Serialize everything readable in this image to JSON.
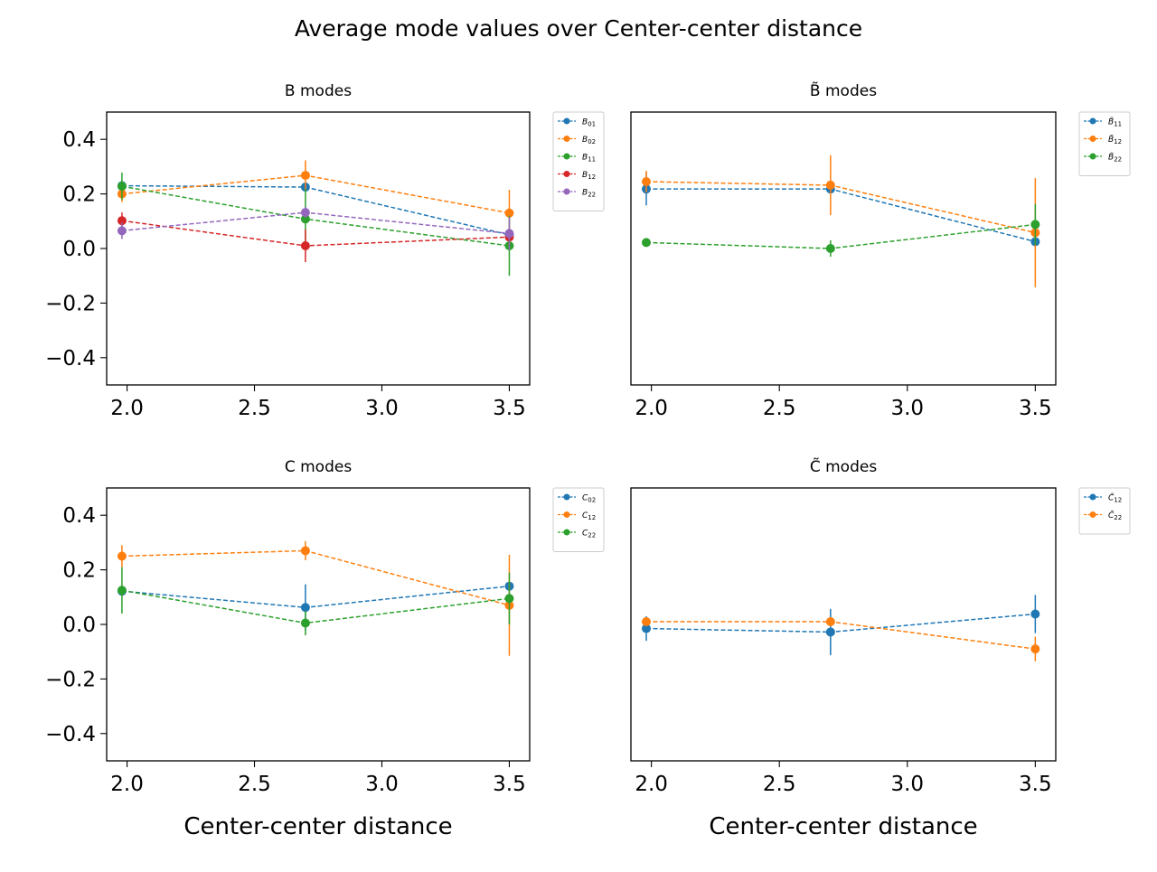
{
  "figure": {
    "suptitle": "Average mode values over Center-center distance"
  },
  "chart_data": [
    {
      "type": "line",
      "title": "B modes",
      "xlabel": "",
      "ylabel": "",
      "xlim": [
        1.92,
        3.58
      ],
      "ylim": [
        -0.5,
        0.5
      ],
      "xticks": [
        "2.0",
        "2.5",
        "3.0",
        "3.5"
      ],
      "yticks": [
        "0.4",
        "0.2",
        "0.0",
        "−0.2",
        "−0.4"
      ],
      "legend_position": "outside-right",
      "show_yticklabels": true,
      "show_xlabel": false,
      "series": [
        {
          "name": "B01",
          "color": "#1f77b4",
          "x": [
            1.98,
            2.7,
            3.5
          ],
          "y": [
            0.23,
            0.225,
            0.05
          ],
          "err": [
            0.01,
            0.01,
            0.02
          ]
        },
        {
          "name": "B02",
          "color": "#ff7f0e",
          "x": [
            1.98,
            2.7,
            3.5
          ],
          "y": [
            0.2,
            0.268,
            0.13
          ],
          "err": [
            0.03,
            0.055,
            0.085
          ]
        },
        {
          "name": "B11",
          "color": "#2ca02c",
          "x": [
            1.98,
            2.7,
            3.5
          ],
          "y": [
            0.228,
            0.108,
            0.01
          ],
          "err": [
            0.05,
            0.11,
            0.11
          ]
        },
        {
          "name": "B12",
          "color": "#d62728",
          "x": [
            1.98,
            2.7,
            3.5
          ],
          "y": [
            0.102,
            0.01,
            0.042
          ],
          "err": [
            0.03,
            0.06,
            0.03
          ]
        },
        {
          "name": "B22",
          "color": "#9467bd",
          "x": [
            1.98,
            2.7,
            3.5
          ],
          "y": [
            0.065,
            0.132,
            0.055
          ],
          "err": [
            0.03,
            0.02,
            0.06
          ]
        }
      ]
    },
    {
      "type": "line",
      "title": "B̃ modes",
      "xlabel": "",
      "ylabel": "",
      "xlim": [
        1.92,
        3.58
      ],
      "ylim": [
        -0.5,
        0.5
      ],
      "xticks": [
        "2.0",
        "2.5",
        "3.0",
        "3.5"
      ],
      "yticks": [],
      "legend_position": "outside-right",
      "show_yticklabels": false,
      "show_xlabel": false,
      "series": [
        {
          "name": "B̃11",
          "color": "#1f77b4",
          "x": [
            1.98,
            2.7,
            3.5
          ],
          "y": [
            0.218,
            0.218,
            0.025
          ],
          "err": [
            0.06,
            0.01,
            0.01
          ]
        },
        {
          "name": "B̃12",
          "color": "#ff7f0e",
          "x": [
            1.98,
            2.7,
            3.5
          ],
          "y": [
            0.245,
            0.232,
            0.058
          ],
          "err": [
            0.04,
            0.11,
            0.2
          ]
        },
        {
          "name": "B̃22",
          "color": "#2ca02c",
          "x": [
            1.98,
            2.7,
            3.5
          ],
          "y": [
            0.022,
            0.0,
            0.088
          ],
          "err": [
            0.005,
            0.03,
            0.075
          ]
        }
      ]
    },
    {
      "type": "line",
      "title": "C modes",
      "xlabel": "Center-center distance",
      "ylabel": "",
      "xlim": [
        1.92,
        3.58
      ],
      "ylim": [
        -0.5,
        0.5
      ],
      "xticks": [
        "2.0",
        "2.5",
        "3.0",
        "3.5"
      ],
      "yticks": [
        "0.4",
        "0.2",
        "0.0",
        "−0.2",
        "−0.4"
      ],
      "legend_position": "outside-right",
      "show_yticklabels": true,
      "show_xlabel": true,
      "series": [
        {
          "name": "C02",
          "color": "#1f77b4",
          "x": [
            1.98,
            2.7,
            3.5
          ],
          "y": [
            0.122,
            0.062,
            0.14
          ],
          "err": [
            0.01,
            0.085,
            0.01
          ]
        },
        {
          "name": "C12",
          "color": "#ff7f0e",
          "x": [
            1.98,
            2.7,
            3.5
          ],
          "y": [
            0.25,
            0.27,
            0.07
          ],
          "err": [
            0.04,
            0.035,
            0.185
          ]
        },
        {
          "name": "C22",
          "color": "#2ca02c",
          "x": [
            1.98,
            2.7,
            3.5
          ],
          "y": [
            0.125,
            0.005,
            0.095
          ],
          "err": [
            0.085,
            0.045,
            0.095
          ]
        }
      ]
    },
    {
      "type": "line",
      "title": "C̃ modes",
      "xlabel": "Center-center distance",
      "ylabel": "",
      "xlim": [
        1.92,
        3.58
      ],
      "ylim": [
        -0.5,
        0.5
      ],
      "xticks": [
        "2.0",
        "2.5",
        "3.0",
        "3.5"
      ],
      "yticks": [],
      "legend_position": "outside-right",
      "show_yticklabels": false,
      "show_xlabel": true,
      "series": [
        {
          "name": "C̃12",
          "color": "#1f77b4",
          "x": [
            1.98,
            2.7,
            3.5
          ],
          "y": [
            -0.015,
            -0.028,
            0.038
          ],
          "err": [
            0.045,
            0.085,
            0.07
          ]
        },
        {
          "name": "C̃22",
          "color": "#ff7f0e",
          "x": [
            1.98,
            2.7,
            3.5
          ],
          "y": [
            0.01,
            0.01,
            -0.09
          ],
          "err": [
            0.015,
            0.01,
            0.045
          ]
        }
      ]
    }
  ]
}
